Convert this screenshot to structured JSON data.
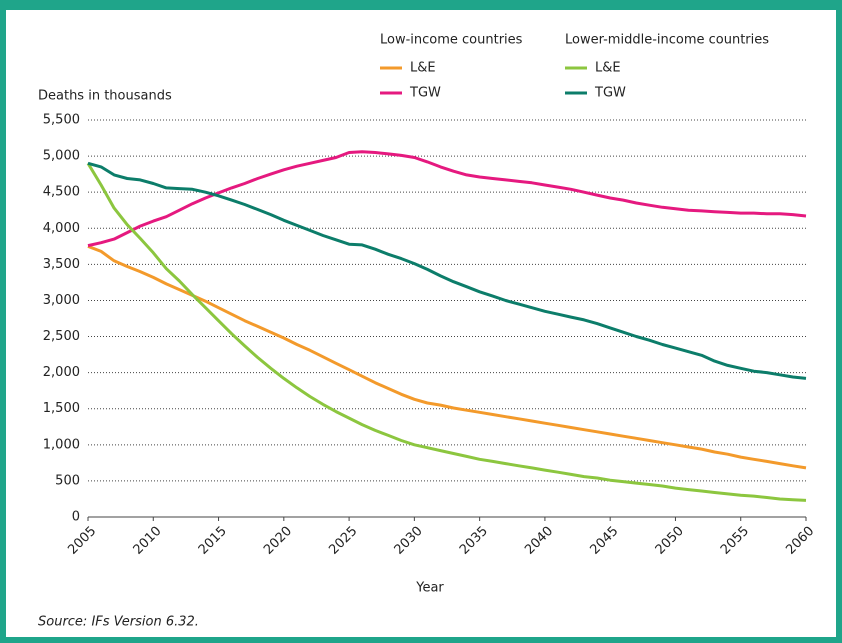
{
  "chart_data": {
    "type": "line",
    "y_axis_label": "Deaths in thousands",
    "x_axis_label": "Year",
    "source": "Source: IFs Version 6.32.",
    "legend_groups": [
      "Low-income countries",
      "Lower-middle-income countries"
    ],
    "x": [
      2005,
      2006,
      2007,
      2008,
      2009,
      2010,
      2011,
      2012,
      2013,
      2014,
      2015,
      2016,
      2017,
      2018,
      2019,
      2020,
      2021,
      2022,
      2023,
      2024,
      2025,
      2026,
      2027,
      2028,
      2029,
      2030,
      2031,
      2032,
      2033,
      2034,
      2035,
      2036,
      2037,
      2038,
      2039,
      2040,
      2041,
      2042,
      2043,
      2044,
      2045,
      2046,
      2047,
      2048,
      2049,
      2050,
      2051,
      2052,
      2053,
      2054,
      2055,
      2056,
      2057,
      2058,
      2059,
      2060
    ],
    "series": [
      {
        "name": "L&E",
        "color": "#f39a2b",
        "values": [
          3750,
          3680,
          3550,
          3470,
          3400,
          3320,
          3230,
          3150,
          3070,
          2990,
          2900,
          2810,
          2720,
          2640,
          2560,
          2480,
          2390,
          2310,
          2220,
          2130,
          2040,
          1950,
          1860,
          1780,
          1700,
          1630,
          1580,
          1550,
          1510,
          1480,
          1450,
          1420,
          1390,
          1360,
          1330,
          1300,
          1270,
          1240,
          1210,
          1180,
          1150,
          1120,
          1090,
          1060,
          1030,
          1000,
          970,
          940,
          900,
          870,
          830,
          800,
          770,
          740,
          710,
          680
        ]
      },
      {
        "name": "TGW",
        "color": "#e5197f",
        "values": [
          3760,
          3800,
          3850,
          3940,
          4030,
          4100,
          4160,
          4250,
          4340,
          4420,
          4490,
          4560,
          4620,
          4690,
          4750,
          4810,
          4860,
          4900,
          4940,
          4980,
          5050,
          5060,
          5050,
          5030,
          5010,
          4980,
          4920,
          4850,
          4790,
          4740,
          4710,
          4690,
          4670,
          4650,
          4630,
          4600,
          4570,
          4540,
          4500,
          4460,
          4420,
          4390,
          4350,
          4320,
          4290,
          4270,
          4250,
          4240,
          4230,
          4220,
          4210,
          4210,
          4200,
          4200,
          4190,
          4170
        ]
      },
      {
        "name": "L&E",
        "color": "#8cc63f",
        "values": [
          4900,
          4600,
          4280,
          4050,
          3860,
          3660,
          3440,
          3270,
          3080,
          2900,
          2720,
          2540,
          2370,
          2210,
          2060,
          1920,
          1790,
          1670,
          1560,
          1460,
          1370,
          1280,
          1200,
          1130,
          1060,
          1000,
          960,
          920,
          880,
          840,
          800,
          770,
          740,
          710,
          680,
          650,
          620,
          590,
          560,
          540,
          510,
          490,
          470,
          450,
          430,
          400,
          380,
          360,
          340,
          320,
          300,
          290,
          270,
          250,
          240,
          230
        ]
      },
      {
        "name": "TGW",
        "color": "#0c7d6a",
        "values": [
          4900,
          4850,
          4740,
          4690,
          4670,
          4620,
          4560,
          4550,
          4540,
          4500,
          4450,
          4390,
          4330,
          4260,
          4190,
          4110,
          4040,
          3970,
          3900,
          3840,
          3780,
          3770,
          3710,
          3640,
          3580,
          3510,
          3430,
          3340,
          3260,
          3190,
          3120,
          3060,
          3000,
          2950,
          2900,
          2850,
          2810,
          2770,
          2730,
          2680,
          2620,
          2560,
          2500,
          2450,
          2390,
          2340,
          2290,
          2240,
          2160,
          2100,
          2060,
          2020,
          2000,
          1970,
          1940,
          1920
        ]
      }
    ],
    "xlim": [
      2005,
      2060
    ],
    "xticks": [
      2005,
      2010,
      2015,
      2020,
      2025,
      2030,
      2035,
      2040,
      2045,
      2050,
      2055,
      2060
    ],
    "ylim": [
      0,
      5500
    ],
    "yticks": [
      0,
      500,
      {
        "value": 1000,
        "label": "1,000"
      },
      {
        "value": 1500,
        "label": "1,500"
      },
      {
        "value": 2000,
        "label": "2,000"
      },
      {
        "value": 2500,
        "label": "2,500"
      },
      {
        "value": 3000,
        "label": "3,000"
      },
      {
        "value": 3500,
        "label": "3,500"
      },
      {
        "value": 4000,
        "label": "4,000"
      },
      {
        "value": 4500,
        "label": "4,500"
      },
      {
        "value": 5000,
        "label": "5,000"
      },
      {
        "value": 5500,
        "label": "5,500"
      }
    ],
    "grid": true
  }
}
